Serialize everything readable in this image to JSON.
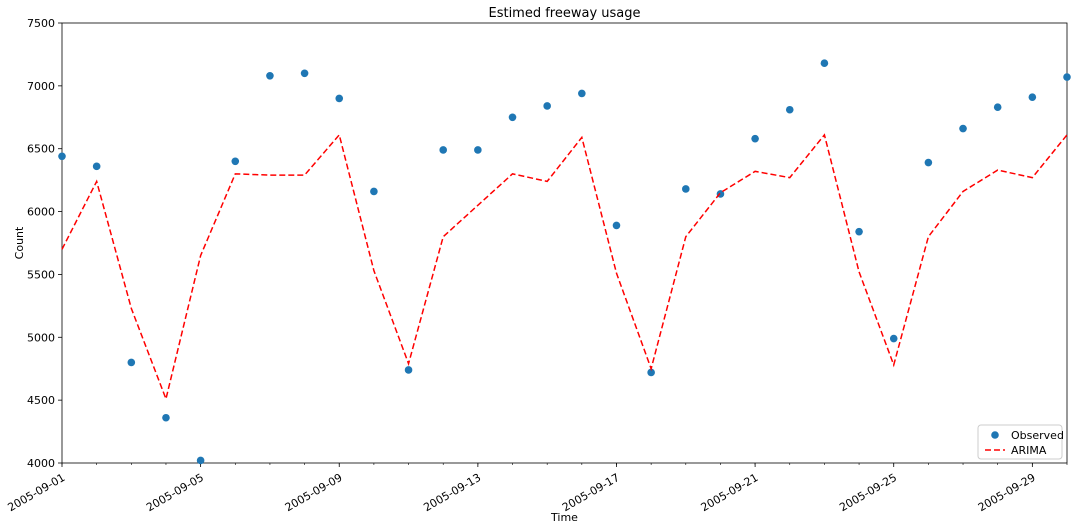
{
  "chart_data": {
    "type": "line",
    "title": "Estimed freeway usage",
    "xlabel": "Time",
    "ylabel": "Count",
    "ylim": [
      4000,
      7500
    ],
    "xlim": [
      "2005-09-01",
      "2005-09-30"
    ],
    "yticks": [
      4000,
      4500,
      5000,
      5500,
      6000,
      6500,
      7000,
      7500
    ],
    "xticks": [
      "2005-09-01",
      "2005-09-05",
      "2005-09-09",
      "2005-09-13",
      "2005-09-17",
      "2005-09-21",
      "2005-09-25",
      "2005-09-29"
    ],
    "x": [
      "2005-09-01",
      "2005-09-02",
      "2005-09-03",
      "2005-09-04",
      "2005-09-05",
      "2005-09-06",
      "2005-09-07",
      "2005-09-08",
      "2005-09-09",
      "2005-09-10",
      "2005-09-11",
      "2005-09-12",
      "2005-09-13",
      "2005-09-14",
      "2005-09-15",
      "2005-09-16",
      "2005-09-17",
      "2005-09-18",
      "2005-09-19",
      "2005-09-20",
      "2005-09-21",
      "2005-09-22",
      "2005-09-23",
      "2005-09-24",
      "2005-09-25",
      "2005-09-26",
      "2005-09-27",
      "2005-09-28",
      "2005-09-29",
      "2005-09-30"
    ],
    "legend_position": "lower-right",
    "grid": false,
    "series": [
      {
        "name": "Observed",
        "style": "markers",
        "color": "#1f77b4",
        "values": [
          6440,
          6360,
          4800,
          4360,
          4020,
          6400,
          7080,
          7100,
          6900,
          6160,
          4740,
          6490,
          6490,
          6750,
          6840,
          6940,
          5890,
          4720,
          6180,
          6140,
          6580,
          6810,
          7180,
          5840,
          4990,
          6390,
          6660,
          6830,
          6910,
          7070
        ]
      },
      {
        "name": "ARIMA",
        "style": "dashed",
        "color": "#ff0000",
        "values": [
          5700,
          6240,
          5230,
          4510,
          5650,
          6300,
          6290,
          6290,
          6610,
          5530,
          4790,
          5800,
          6050,
          6300,
          6240,
          6590,
          5510,
          4750,
          5800,
          6150,
          6320,
          6270,
          6610,
          5520,
          4780,
          5800,
          6160,
          6330,
          6270,
          6610
        ]
      }
    ]
  }
}
